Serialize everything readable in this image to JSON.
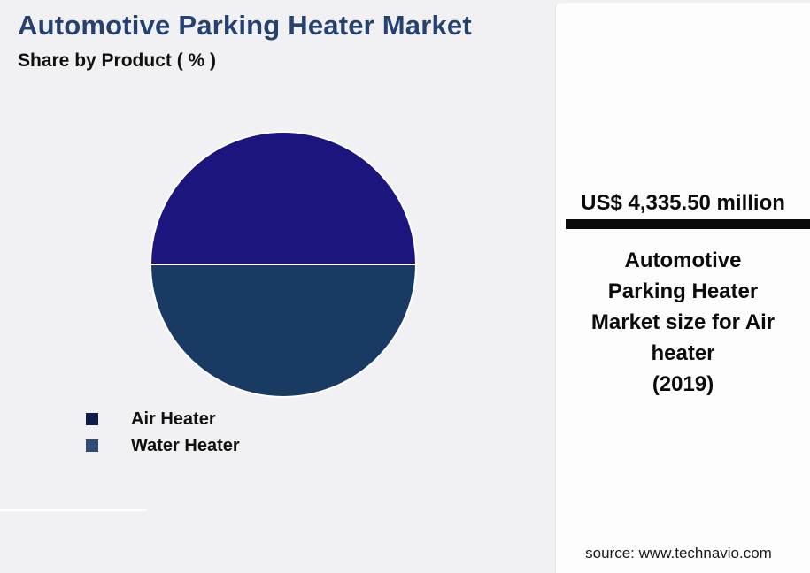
{
  "header": {
    "title": "Automotive Parking Heater Market",
    "subtitle": "Share by Product ( % )"
  },
  "chart_data": {
    "type": "pie",
    "title": "Automotive Parking Heater Market",
    "subtitle": "Share by Product ( % )",
    "labels": [
      "Air Heater",
      "Water Heater"
    ],
    "values": [
      50,
      50
    ],
    "unit": "%",
    "values_labeled_on_chart": false,
    "slice_colors": [
      "#1c157e",
      "#193a63"
    ],
    "legend_marker_colors": [
      "#0e2049",
      "#2e4a7a"
    ],
    "slice_divider_color": "#ffffff",
    "start_angle_deg": 180,
    "direction": "clockwise",
    "legend_position": "bottom-left"
  },
  "callout": {
    "stat_value": "US$ 4,335.50 million",
    "stat_description_lines": [
      "Automotive",
      "Parking Heater",
      "Market size for Air",
      "heater",
      "(2019)"
    ],
    "accent_bar_color": "#0a0a0a"
  },
  "footer": {
    "source": "source: www.technavio.com"
  },
  "colors": {
    "background": "#f1f1f3",
    "panel_background": "#fdfdfe",
    "title": "#24416f",
    "text": "#0b0b0b"
  }
}
